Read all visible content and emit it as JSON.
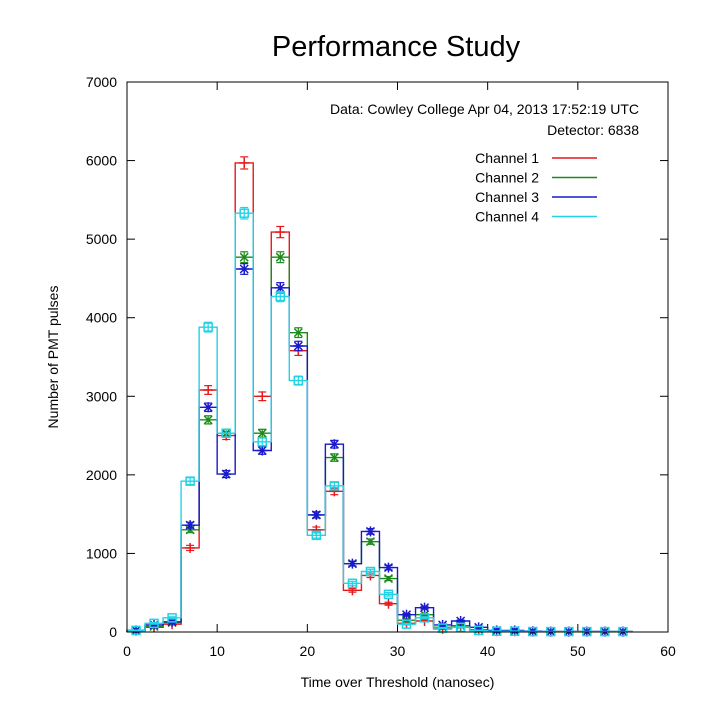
{
  "chart_data": {
    "type": "step",
    "title": "Performance Study",
    "xlabel": "Time over Threshold (nanosec)",
    "ylabel": "Number of PMT pulses",
    "xlim": [
      0,
      60
    ],
    "ylim": [
      0,
      7000
    ],
    "xticks": [
      0,
      10,
      20,
      30,
      40,
      50,
      60
    ],
    "yticks": [
      0,
      1000,
      2000,
      3000,
      4000,
      5000,
      6000,
      7000
    ],
    "annotations": [
      "Data: Cowley College Apr 04, 2013 17:52:19 UTC",
      "Detector: 6838"
    ],
    "legend_position": "top-right",
    "bin_edges": [
      0,
      2,
      4,
      6,
      8,
      10,
      12,
      14,
      16,
      18,
      20,
      22,
      24,
      26,
      28,
      30,
      32,
      34,
      36,
      38,
      40,
      42,
      44,
      46,
      48,
      50,
      52,
      54,
      56
    ],
    "x": [
      1,
      3,
      5,
      7,
      9,
      11,
      13,
      15,
      17,
      19,
      21,
      23,
      25,
      27,
      29,
      31,
      33,
      35,
      37,
      39,
      41,
      43,
      45,
      47,
      49,
      51,
      53,
      55
    ],
    "series": [
      {
        "name": "Channel 1",
        "color": "#e41a1c",
        "values": [
          20,
          60,
          100,
          1070,
          3080,
          2500,
          5970,
          3000,
          5090,
          3580,
          1300,
          1790,
          530,
          720,
          360,
          110,
          140,
          40,
          60,
          20,
          10,
          10,
          5,
          5,
          5,
          5,
          5,
          5
        ]
      },
      {
        "name": "Channel 2",
        "color": "#1b8a1b",
        "values": [
          20,
          70,
          120,
          1300,
          2700,
          2530,
          4770,
          2530,
          4770,
          3810,
          1490,
          2220,
          870,
          1150,
          680,
          150,
          220,
          60,
          80,
          30,
          15,
          10,
          5,
          5,
          5,
          5,
          5,
          5
        ]
      },
      {
        "name": "Channel 3",
        "color": "#1a1acc",
        "values": [
          20,
          90,
          130,
          1360,
          2860,
          2010,
          4620,
          2310,
          4380,
          3640,
          1490,
          2390,
          870,
          1280,
          820,
          220,
          310,
          90,
          140,
          60,
          20,
          20,
          10,
          5,
          5,
          5,
          5,
          5
        ]
      },
      {
        "name": "Channel 4",
        "color": "#22d3e6",
        "values": [
          20,
          110,
          180,
          1920,
          3880,
          2530,
          5330,
          2420,
          4270,
          3200,
          1230,
          1860,
          620,
          770,
          480,
          100,
          180,
          50,
          60,
          20,
          10,
          10,
          5,
          5,
          5,
          5,
          5,
          5
        ]
      }
    ]
  }
}
